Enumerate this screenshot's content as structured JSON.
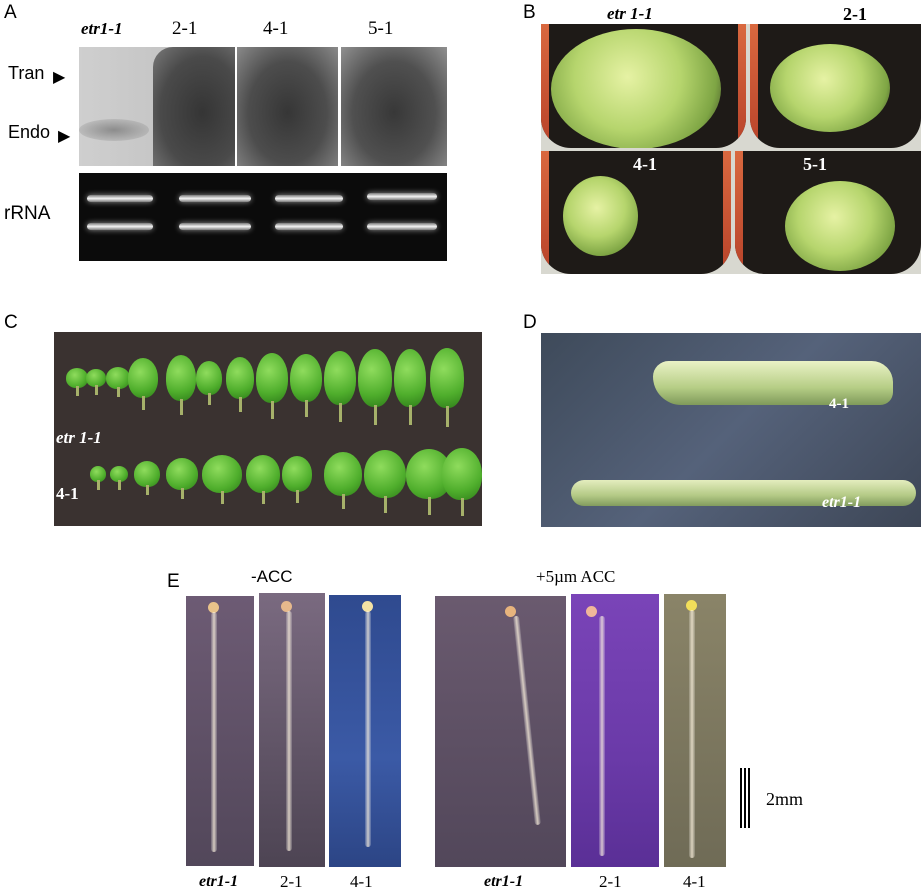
{
  "panels": {
    "a": {
      "letter": "A",
      "lanes": [
        "etr1-1",
        "2-1",
        "4-1",
        "5-1"
      ],
      "arrows": [
        "Tran",
        "Endo"
      ],
      "gel_label": "rRNA"
    },
    "b": {
      "letter": "B",
      "pots": [
        "etr 1-1",
        "2-1",
        "4-1",
        "5-1"
      ]
    },
    "c": {
      "letter": "C",
      "rows": [
        "etr 1-1",
        "4-1"
      ]
    },
    "d": {
      "letter": "D",
      "labels": [
        "4-1",
        "etr1-1"
      ]
    },
    "e": {
      "letter": "E",
      "conditions": [
        "-ACC",
        "+5µm ACC"
      ],
      "seedlings": [
        "etr1-1",
        "2-1",
        "4-1",
        "etr1-1",
        "2-1",
        "4-1"
      ],
      "scale": "2mm"
    }
  },
  "colors": {
    "blot_bg": "#c8c8c8",
    "blot_signal": "#3a3a3a",
    "gel_bg": "#0b0b0b",
    "pot_rim": "#c94e30",
    "soil": "#1e1a17",
    "leaf_bg": "#3a3230",
    "leaf_green": "#4fae2c",
    "silique_bg": "#3e4a5a",
    "seedling_bg_purple": "#5e4e66",
    "seedling_bg_blue": "#35519a",
    "seedling_bg_violet": "#6d3ea8",
    "seedling_bg_olive": "#7e7a62"
  }
}
